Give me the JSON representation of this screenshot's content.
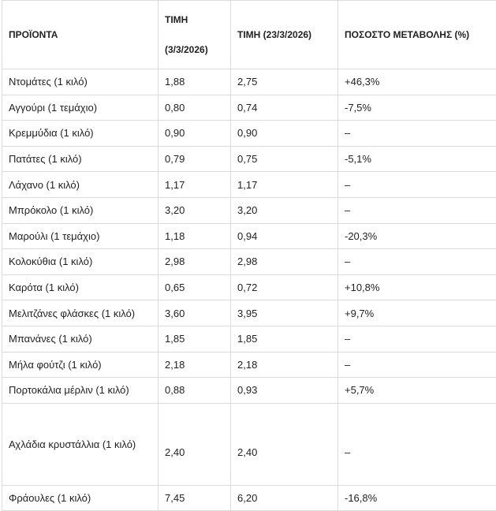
{
  "table": {
    "header": [
      "ΠΡΟΪΟΝΤΑ",
      [
        "ΤΙΜΗ",
        "(3/3/2026)"
      ],
      "ΤΙΜΗ (23/3/2026)",
      "ΠΟΣΟΣΤΟ ΜΕΤΑΒΟΛΗΣ (%)"
    ],
    "rows": [
      [
        "Ντομάτες (1 κιλό)",
        "1,88",
        "2,75",
        "+46,3%"
      ],
      [
        "Αγγούρι (1 τεμάχιο)",
        "0,80",
        "0,74",
        "-7,5%"
      ],
      [
        "Κρεμμύδια (1 κιλό)",
        "0,90",
        "0,90",
        "–"
      ],
      [
        "Πατάτες (1 κιλό)",
        "0,79",
        "0,75",
        "-5,1%"
      ],
      [
        "Λάχανο (1 κιλό)",
        "1,17",
        "1,17",
        "–"
      ],
      [
        "Μπρόκολο (1 κιλό)",
        "3,20",
        "3,20",
        "–"
      ],
      [
        "Μαρούλι (1 τεμάχιο)",
        "1,18",
        "0,94",
        "-20,3%"
      ],
      [
        "Κολοκύθια (1 κιλό)",
        "2,98",
        "2,98",
        "–"
      ],
      [
        "Καρότα (1 κιλό)",
        "0,65",
        "0,72",
        "+10,8%"
      ],
      [
        "Μελιτζάνες φλάσκες (1 κιλό)",
        "3,60",
        "3,95",
        "+9,7%"
      ],
      [
        "Μπανάνες (1 κιλό)",
        "1,85",
        "1,85",
        "–"
      ],
      [
        "Μήλα φούτζι (1 κιλό)",
        "2,18",
        "2,18",
        "–"
      ],
      [
        "Πορτοκάλια μέρλιν (1 κιλό)",
        "0,88",
        "0,93",
        "+5,7%"
      ],
      [
        "Αχλάδια κρυστάλλια (1 κιλό)",
        "2,40",
        "2,40",
        "–"
      ],
      [
        "Φράουλες (1 κιλό)",
        "7,45",
        "6,20",
        "-16,8%"
      ]
    ]
  }
}
